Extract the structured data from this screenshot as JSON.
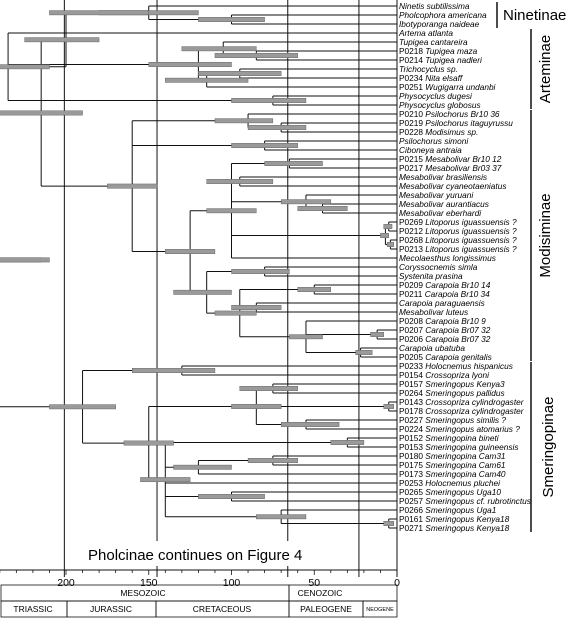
{
  "figure": {
    "clades": [
      "Ninetinae",
      "Arteminae",
      "Modisiminae",
      "Smeringopinae"
    ],
    "continuation_note": "Pholcinae continues on Figure 4",
    "time_axis": {
      "ticks": [
        "200",
        "150",
        "100",
        "50",
        "0"
      ],
      "tick_values": [
        200,
        150,
        100,
        50,
        0
      ],
      "range_ma": [
        240,
        0
      ]
    },
    "eras": [
      "MESOZOIC",
      "CENOZOIC"
    ],
    "periods": [
      "TRIASSIC",
      "JURASSIC",
      "CRETACEOUS",
      "PALEOGENE",
      "NEOGENE"
    ],
    "bars_color": "#9a9a9a",
    "line_color": "#111111"
  },
  "taxa": [
    {
      "id": "",
      "name": "Ninetis subtilissima"
    },
    {
      "id": "",
      "name": "Pholcophora americana"
    },
    {
      "id": "",
      "name": "Ibotyporanga naideae"
    },
    {
      "id": "",
      "name": "Artema atlanta"
    },
    {
      "id": "",
      "name": "Tupigea cantareira"
    },
    {
      "id": "P0218",
      "name": "Tupigea maza"
    },
    {
      "id": "P0214",
      "name": "Tupigea nadleri"
    },
    {
      "id": "",
      "name": "Trichocyclus sp."
    },
    {
      "id": "P0234",
      "name": "Nita elsaff"
    },
    {
      "id": "P0251",
      "name": "Wugigarra undanbi"
    },
    {
      "id": "",
      "name": "Physocyclus dugesi"
    },
    {
      "id": "",
      "name": "Physocyclus globosus"
    },
    {
      "id": "P0210",
      "name": "Psilochorus Br10 36"
    },
    {
      "id": "P0219",
      "name": "Psilochorus itaguyrussu"
    },
    {
      "id": "P0228",
      "name": "Modisimus sp."
    },
    {
      "id": "",
      "name": "Psilochorus simoni"
    },
    {
      "id": "",
      "name": "Ciboneya antraia"
    },
    {
      "id": "P0215",
      "name": "Mesabolivar Br10 12"
    },
    {
      "id": "P0217",
      "name": "Mesabolivar Br03 37"
    },
    {
      "id": "",
      "name": "Mesabolivar brasiliensis"
    },
    {
      "id": "",
      "name": "Mesabolivar cyaneotaeniatus"
    },
    {
      "id": "",
      "name": "Mesabolivar yuruani"
    },
    {
      "id": "",
      "name": "Mesabolivar aurantiacus"
    },
    {
      "id": "",
      "name": "Mesabolivar eberhardi"
    },
    {
      "id": "P0269",
      "name": "Litoporus iguassuensis ?"
    },
    {
      "id": "P0212",
      "name": "Litoporus iguassuensis ?"
    },
    {
      "id": "P0268",
      "name": "Litoporus iguassuensis ?"
    },
    {
      "id": "P0213",
      "name": "Litoporus iguassuensis ?"
    },
    {
      "id": "",
      "name": "Mecolaesthus longissimus"
    },
    {
      "id": "",
      "name": "Coryssocnemis simla"
    },
    {
      "id": "",
      "name": "Systenita prasina"
    },
    {
      "id": "P0209",
      "name": "Carapoia Br10 14"
    },
    {
      "id": "P0211",
      "name": "Carapoia Br10 34"
    },
    {
      "id": "",
      "name": "Carapoia paraguaensis"
    },
    {
      "id": "",
      "name": "Mesabolivar luteus"
    },
    {
      "id": "P0208",
      "name": "Carapoia Br10 9"
    },
    {
      "id": "P0207",
      "name": "Carapoia Br07 32"
    },
    {
      "id": "P0206",
      "name": "Carapoia Br07 32"
    },
    {
      "id": "",
      "name": "Carapoia ubatuba"
    },
    {
      "id": "P0205",
      "name": "Carapoia genitalis"
    },
    {
      "id": "P0233",
      "name": "Holocnemus hispanicus"
    },
    {
      "id": "P0154",
      "name": "Crossopriza lyoni"
    },
    {
      "id": "P0157",
      "name": "Smeringopus Kenya3"
    },
    {
      "id": "P0264",
      "name": "Smeringopus pallidus"
    },
    {
      "id": "P0143",
      "name": "Crossopriza cylindrogaster"
    },
    {
      "id": "P0178",
      "name": "Crossopriza cylindrogaster"
    },
    {
      "id": "P0227",
      "name": "Smeringopus similis ?"
    },
    {
      "id": "P0224",
      "name": "Smeringopus atomarius ?"
    },
    {
      "id": "P0152",
      "name": "Smeringopina bineti"
    },
    {
      "id": "P0153",
      "name": "Smeringopina guineensis"
    },
    {
      "id": "P0180",
      "name": "Smeringopina Cam31"
    },
    {
      "id": "P0175",
      "name": "Smeringopina Cam61"
    },
    {
      "id": "P0173",
      "name": "Smeringopina Cam40"
    },
    {
      "id": "P0253",
      "name": "Holocnemus pluchei"
    },
    {
      "id": "P0265",
      "name": "Smeringopus Uga10"
    },
    {
      "id": "P0257",
      "name": "Smeringopus cf. rubrotinctus"
    },
    {
      "id": "P0266",
      "name": "Smeringopus Uga1"
    },
    {
      "id": "P0161",
      "name": "Smeringopus Kenya18"
    },
    {
      "id": "P0271",
      "name": "Smeringopus Kenya18"
    }
  ]
}
